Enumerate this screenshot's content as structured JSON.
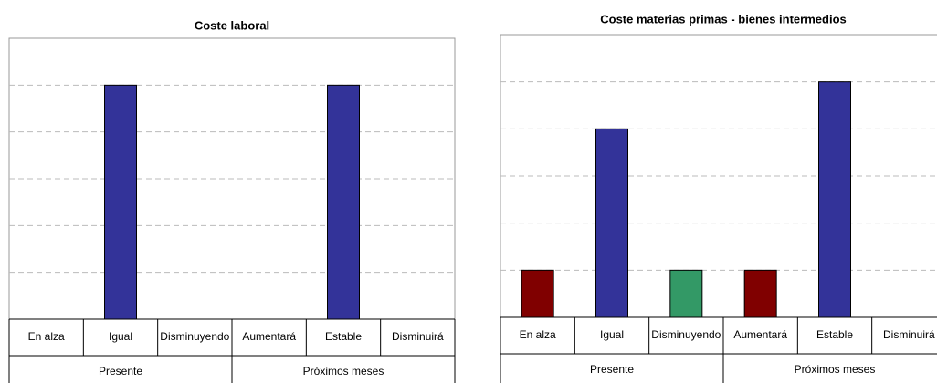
{
  "chart_data": [
    {
      "type": "bar",
      "title": "Coste laboral",
      "categories": [
        "En alza",
        "Igual",
        "Disminuyendo",
        "Aumentará",
        "Estable",
        "Disminuirá"
      ],
      "groups": [
        {
          "label": "Presente",
          "span": 3
        },
        {
          "label": "Próximos meses",
          "span": 3
        }
      ],
      "values": [
        0,
        5,
        0,
        0,
        5,
        0
      ],
      "colors": [
        "#800000",
        "#333399",
        "#339966",
        "#800000",
        "#333399",
        "#339966"
      ],
      "ylim": [
        0,
        6
      ],
      "yticks": [
        0,
        1,
        2,
        3,
        4,
        5,
        6
      ],
      "grid": true
    },
    {
      "type": "bar",
      "title": "Coste materias primas - bienes intermedios",
      "categories": [
        "En alza",
        "Igual",
        "Disminuyendo",
        "Aumentará",
        "Estable",
        "Disminuirá"
      ],
      "groups": [
        {
          "label": "Presente",
          "span": 3
        },
        {
          "label": "Próximos meses",
          "span": 3
        }
      ],
      "values": [
        1,
        4,
        1,
        1,
        5,
        0
      ],
      "colors": [
        "#800000",
        "#333399",
        "#339966",
        "#800000",
        "#333399",
        "#339966"
      ],
      "ylim": [
        0,
        6
      ],
      "yticks": [
        0,
        1,
        2,
        3,
        4,
        5,
        6
      ],
      "grid": true
    }
  ]
}
